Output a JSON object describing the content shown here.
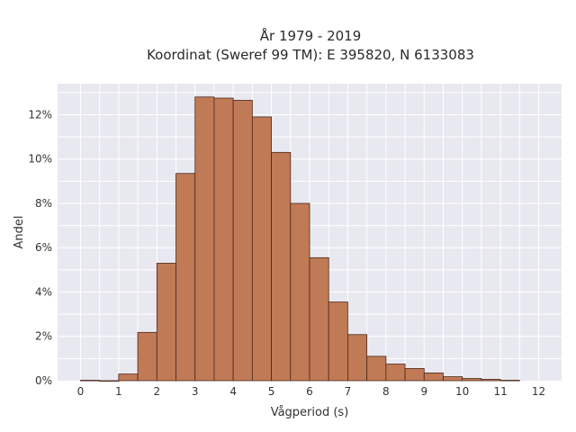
{
  "chart_data": {
    "type": "bar",
    "title_line1": "År 1979 - 2019",
    "title_line2": "Koordinat (Sweref 99 TM): E 395820, N 6133083",
    "xlabel": "Vågperiod (s)",
    "ylabel": "Andel",
    "bin_width": 0.5,
    "bins": [
      {
        "x": 0.0,
        "value": 0.02
      },
      {
        "x": 0.5,
        "value": 0.0
      },
      {
        "x": 1.0,
        "value": 0.3
      },
      {
        "x": 1.5,
        "value": 2.18
      },
      {
        "x": 2.0,
        "value": 5.3
      },
      {
        "x": 2.5,
        "value": 9.35
      },
      {
        "x": 3.0,
        "value": 12.8
      },
      {
        "x": 3.5,
        "value": 12.75
      },
      {
        "x": 4.0,
        "value": 12.65
      },
      {
        "x": 4.5,
        "value": 11.9
      },
      {
        "x": 5.0,
        "value": 10.3
      },
      {
        "x": 5.5,
        "value": 8.0
      },
      {
        "x": 6.0,
        "value": 5.55
      },
      {
        "x": 6.5,
        "value": 3.55
      },
      {
        "x": 7.0,
        "value": 2.08
      },
      {
        "x": 7.5,
        "value": 1.1
      },
      {
        "x": 8.0,
        "value": 0.75
      },
      {
        "x": 8.5,
        "value": 0.55
      },
      {
        "x": 9.0,
        "value": 0.35
      },
      {
        "x": 9.5,
        "value": 0.18
      },
      {
        "x": 10.0,
        "value": 0.1
      },
      {
        "x": 10.5,
        "value": 0.06
      },
      {
        "x": 11.0,
        "value": 0.02
      }
    ],
    "xticks": [
      "0",
      "1",
      "2",
      "3",
      "4",
      "5",
      "6",
      "7",
      "8",
      "9",
      "10",
      "11",
      "12"
    ],
    "yticks": [
      "0%",
      "2%",
      "4%",
      "6%",
      "8%",
      "10%",
      "12%"
    ],
    "xlim": [
      -0.6,
      12.6
    ],
    "ylim": [
      0,
      13.4
    ],
    "grid": true,
    "colors": {
      "bar_fill": "#c07a56",
      "bar_stroke": "#4a2a1a",
      "plot_bg": "#e8e8f0",
      "grid": "#ffffff"
    }
  }
}
